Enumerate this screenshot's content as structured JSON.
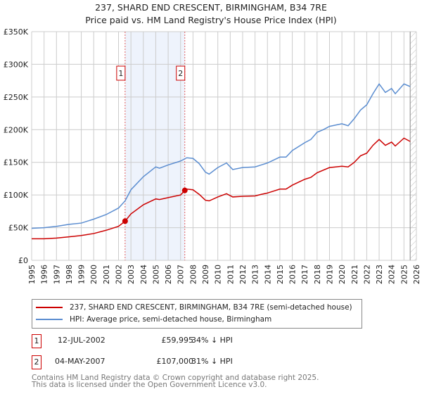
{
  "chart_data": {
    "type": "line",
    "title": "237, SHARD END CRESCENT, BIRMINGHAM, B34 7RE",
    "subtitle": "Price paid vs. HM Land Registry's House Price Index (HPI)",
    "xlim": [
      1995,
      2026
    ],
    "ylim": [
      0,
      350000
    ],
    "x_ticks": [
      "1995",
      "1996",
      "1997",
      "1998",
      "1999",
      "2000",
      "2001",
      "2002",
      "2003",
      "2004",
      "2005",
      "2006",
      "2007",
      "2008",
      "2009",
      "2010",
      "2011",
      "2012",
      "2013",
      "2014",
      "2015",
      "2016",
      "2017",
      "2018",
      "2019",
      "2020",
      "2021",
      "2022",
      "2023",
      "2024",
      "2025",
      "2026"
    ],
    "y_ticks": [
      {
        "v": 0,
        "label": "£0"
      },
      {
        "v": 50000,
        "label": "£50K"
      },
      {
        "v": 100000,
        "label": "£100K"
      },
      {
        "v": 150000,
        "label": "£150K"
      },
      {
        "v": 200000,
        "label": "£200K"
      },
      {
        "v": 250000,
        "label": "£250K"
      },
      {
        "v": 300000,
        "label": "£300K"
      },
      {
        "v": 350000,
        "label": "£350K"
      }
    ],
    "grid": true,
    "shaded_range": [
      2002.53,
      2007.34
    ],
    "hatched_from": 2025.5,
    "series": [
      {
        "name": "237, SHARD END CRESCENT, BIRMINGHAM, B34 7RE (semi-detached house)",
        "color": "#cc0000",
        "x": [
          1995,
          1996,
          1997,
          1998,
          1999,
          2000,
          2001,
          2002,
          2002.53,
          2003,
          2004,
          2005,
          2005.3,
          2006,
          2007,
          2007.34,
          2007.5,
          2008,
          2008.5,
          2009,
          2009.3,
          2010,
          2010.7,
          2011.2,
          2012,
          2013,
          2013.5,
          2014,
          2015,
          2015.5,
          2016,
          2017,
          2017.5,
          2018,
          2019,
          2019.5,
          2020,
          2020.5,
          2021,
          2021.5,
          2022,
          2022.5,
          2023,
          2023.5,
          2024,
          2024.3,
          2025,
          2025.5
        ],
        "y": [
          33000,
          33000,
          34000,
          36000,
          38000,
          41000,
          46000,
          52000,
          59995,
          71000,
          85000,
          94000,
          93000,
          96000,
          100000,
          107000,
          109000,
          108000,
          101000,
          92000,
          91000,
          97000,
          102000,
          97000,
          98000,
          98500,
          101000,
          103000,
          109000,
          109000,
          115000,
          124000,
          127000,
          134000,
          142000,
          143000,
          144000,
          143000,
          150000,
          160000,
          164000,
          176000,
          185000,
          176000,
          181000,
          175000,
          187000,
          182000
        ]
      },
      {
        "name": "HPI: Average price, semi-detached house, Birmingham",
        "color": "#5b8dd0",
        "x": [
          1995,
          1996,
          1997,
          1998,
          1999,
          2000,
          2001,
          2002,
          2002.53,
          2003,
          2004,
          2005,
          2005.3,
          2006,
          2007,
          2007.5,
          2008,
          2008.5,
          2009,
          2009.3,
          2010,
          2010.7,
          2011.2,
          2012,
          2013,
          2013.5,
          2014,
          2015,
          2015.5,
          2016,
          2017,
          2017.5,
          2018,
          2018.5,
          2019,
          2019.5,
          2020,
          2020.5,
          2021,
          2021.5,
          2022,
          2022.5,
          2023,
          2023.5,
          2024,
          2024.3,
          2025,
          2025.5
        ],
        "y": [
          49000,
          50000,
          52000,
          55000,
          57000,
          63000,
          70000,
          80000,
          91000,
          108000,
          128000,
          143000,
          141000,
          146000,
          152000,
          157000,
          156000,
          148000,
          135000,
          132000,
          142000,
          149000,
          139000,
          142000,
          143000,
          146000,
          149000,
          158000,
          158000,
          168000,
          180000,
          185000,
          196000,
          200000,
          205000,
          207000,
          209000,
          206000,
          217000,
          230000,
          238000,
          255000,
          270000,
          257000,
          263000,
          255000,
          270000,
          266000
        ]
      }
    ],
    "sales": [
      {
        "id": "1",
        "x": 2002.53,
        "y": 59995,
        "date": "12-JUL-2002",
        "price": "£59,995",
        "hpi": "34% ↓ HPI"
      },
      {
        "id": "2",
        "x": 2007.34,
        "y": 107000,
        "date": "04-MAY-2007",
        "price": "£107,000",
        "hpi": "31% ↓ HPI"
      }
    ]
  },
  "footer": {
    "line1": "Contains HM Land Registry data © Crown copyright and database right 2025.",
    "line2": "This data is licensed under the Open Government Licence v3.0."
  }
}
